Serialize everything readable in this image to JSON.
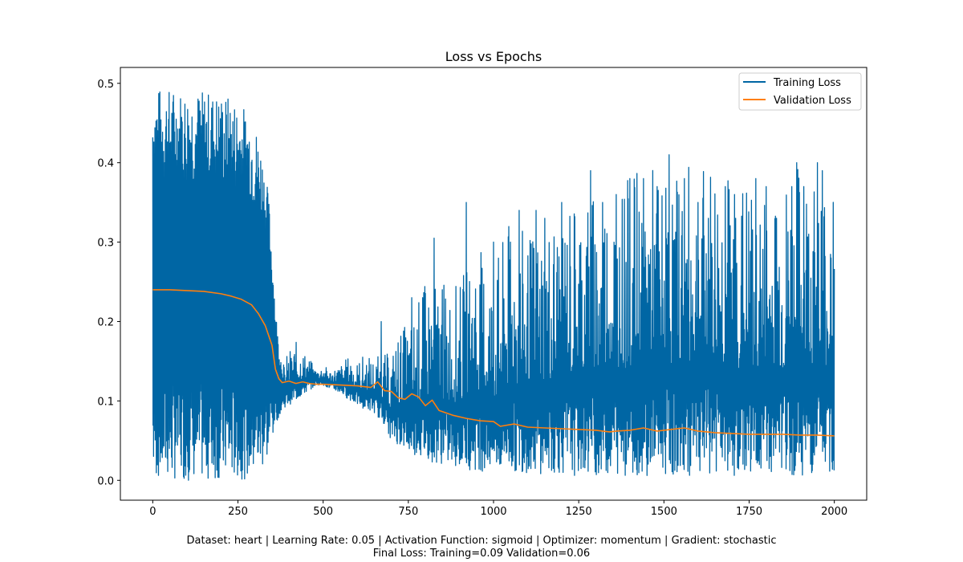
{
  "chart_data": {
    "type": "line",
    "title": "Loss vs Epochs",
    "xlabel": "",
    "ylabel": "",
    "xlim": [
      -95,
      2095
    ],
    "ylim": [
      -0.025,
      0.52
    ],
    "x_ticks": [
      0,
      250,
      500,
      750,
      1000,
      1250,
      1500,
      1750,
      2000
    ],
    "y_ticks": [
      0.0,
      0.1,
      0.2,
      0.3,
      0.4,
      0.5
    ],
    "x_tick_labels": [
      "0",
      "250",
      "500",
      "750",
      "1000",
      "1250",
      "1500",
      "1750",
      "2000"
    ],
    "y_tick_labels": [
      "0.0",
      "0.1",
      "0.2",
      "0.3",
      "0.4",
      "0.5"
    ],
    "grid": false,
    "legend_position": "top-right",
    "series": [
      {
        "name": "Training Loss",
        "color": "#0066a4",
        "style": "line",
        "note": "high-frequency oscillation; envelopes approximate the upper/lower extents of the trace",
        "envelope_x": [
          0,
          50,
          100,
          150,
          200,
          220,
          240,
          260,
          280,
          300,
          320,
          340,
          350,
          360,
          370,
          380,
          400,
          420,
          450,
          480,
          500,
          520,
          550,
          580,
          600,
          620,
          650,
          680,
          700,
          720,
          750,
          780,
          800,
          850,
          900,
          950,
          1000,
          1050,
          1100,
          1150,
          1200,
          1250,
          1300,
          1350,
          1400,
          1450,
          1500,
          1550,
          1600,
          1650,
          1700,
          1750,
          1800,
          1850,
          1900,
          1950,
          2000
        ],
        "upper": [
          0.495,
          0.494,
          0.493,
          0.491,
          0.488,
          0.485,
          0.48,
          0.475,
          0.465,
          0.45,
          0.42,
          0.36,
          0.3,
          0.22,
          0.17,
          0.145,
          0.165,
          0.175,
          0.16,
          0.14,
          0.145,
          0.14,
          0.145,
          0.16,
          0.15,
          0.16,
          0.155,
          0.16,
          0.16,
          0.19,
          0.2,
          0.23,
          0.25,
          0.25,
          0.25,
          0.3,
          0.27,
          0.33,
          0.31,
          0.33,
          0.35,
          0.37,
          0.37,
          0.38,
          0.38,
          0.41,
          0.38,
          0.4,
          0.39,
          0.41,
          0.39,
          0.38,
          0.37,
          0.38,
          0.4,
          0.39,
          0.4
        ],
        "lower": [
          0.0,
          0.0,
          0.0,
          0.0,
          0.0,
          0.0,
          0.0,
          0.001,
          0.002,
          0.006,
          0.012,
          0.03,
          0.05,
          0.07,
          0.08,
          0.09,
          0.095,
          0.1,
          0.11,
          0.12,
          0.12,
          0.115,
          0.11,
          0.1,
          0.095,
          0.09,
          0.085,
          0.07,
          0.05,
          0.045,
          0.035,
          0.03,
          0.025,
          0.02,
          0.015,
          0.012,
          0.01,
          0.01,
          0.009,
          0.008,
          0.007,
          0.006,
          0.006,
          0.006,
          0.006,
          0.006,
          0.006,
          0.006,
          0.006,
          0.006,
          0.006,
          0.006,
          0.006,
          0.006,
          0.006,
          0.006,
          0.006
        ],
        "spikes": [
          [
            657,
            0.25
          ],
          [
            670,
            0.2
          ],
          [
            760,
            0.23
          ],
          [
            775,
            0.23
          ],
          [
            792,
            0.23
          ],
          [
            826,
            0.305
          ],
          [
            850,
            0.24
          ],
          [
            876,
            0.25
          ],
          [
            920,
            0.35
          ],
          [
            975,
            0.32
          ],
          [
            1000,
            0.3
          ],
          [
            1020,
            0.3
          ],
          [
            1050,
            0.3
          ],
          [
            1075,
            0.34
          ],
          [
            1100,
            0.3
          ],
          [
            1125,
            0.34
          ],
          [
            1150,
            0.33
          ],
          [
            1175,
            0.35
          ],
          [
            1200,
            0.35
          ],
          [
            1225,
            0.36
          ],
          [
            1260,
            0.39
          ],
          [
            1285,
            0.39
          ],
          [
            1300,
            0.38
          ],
          [
            1320,
            0.35
          ],
          [
            1340,
            0.37
          ],
          [
            1360,
            0.36
          ],
          [
            1380,
            0.35
          ],
          [
            1400,
            0.38
          ],
          [
            1420,
            0.41
          ],
          [
            1440,
            0.38
          ],
          [
            1460,
            0.38
          ],
          [
            1480,
            0.37
          ],
          [
            1500,
            0.37
          ],
          [
            1515,
            0.41
          ],
          [
            1540,
            0.35
          ],
          [
            1560,
            0.38
          ],
          [
            1580,
            0.37
          ],
          [
            1600,
            0.35
          ],
          [
            1630,
            0.33
          ],
          [
            1655,
            0.41
          ],
          [
            1680,
            0.37
          ],
          [
            1710,
            0.33
          ],
          [
            1740,
            0.36
          ],
          [
            1770,
            0.38
          ],
          [
            1800,
            0.37
          ],
          [
            1830,
            0.33
          ],
          [
            1855,
            0.37
          ],
          [
            1875,
            0.37
          ],
          [
            1890,
            0.4
          ],
          [
            1910,
            0.37
          ],
          [
            1925,
            0.31
          ],
          [
            1950,
            0.4
          ],
          [
            1965,
            0.39
          ],
          [
            1975,
            0.4
          ],
          [
            1990,
            0.28
          ]
        ]
      },
      {
        "name": "Validation Loss",
        "color": "#ff7f0e",
        "style": "line",
        "x": [
          0,
          50,
          100,
          150,
          200,
          230,
          260,
          290,
          310,
          330,
          350,
          360,
          370,
          380,
          400,
          420,
          440,
          460,
          480,
          500,
          550,
          600,
          640,
          660,
          680,
          700,
          720,
          740,
          760,
          780,
          800,
          820,
          840,
          880,
          920,
          960,
          1000,
          1020,
          1060,
          1100,
          1150,
          1200,
          1250,
          1300,
          1340,
          1360,
          1400,
          1440,
          1480,
          1520,
          1560,
          1600,
          1650,
          1700,
          1750,
          1800,
          1850,
          1900,
          1950,
          2000
        ],
        "y": [
          0.24,
          0.24,
          0.239,
          0.238,
          0.235,
          0.232,
          0.228,
          0.221,
          0.21,
          0.195,
          0.17,
          0.14,
          0.128,
          0.123,
          0.125,
          0.122,
          0.124,
          0.122,
          0.121,
          0.121,
          0.12,
          0.119,
          0.117,
          0.124,
          0.113,
          0.112,
          0.104,
          0.102,
          0.109,
          0.105,
          0.094,
          0.101,
          0.088,
          0.082,
          0.078,
          0.075,
          0.074,
          0.068,
          0.071,
          0.067,
          0.066,
          0.065,
          0.064,
          0.063,
          0.061,
          0.062,
          0.063,
          0.066,
          0.062,
          0.064,
          0.066,
          0.062,
          0.06,
          0.059,
          0.058,
          0.058,
          0.058,
          0.057,
          0.057,
          0.056
        ]
      }
    ]
  },
  "caption": {
    "line1": "Dataset: heart | Learning Rate: 0.05 | Activation Function: sigmoid | Optimizer: momentum | Gradient: stochastic",
    "line2": "Final Loss: Training=0.09 Validation=0.06"
  }
}
